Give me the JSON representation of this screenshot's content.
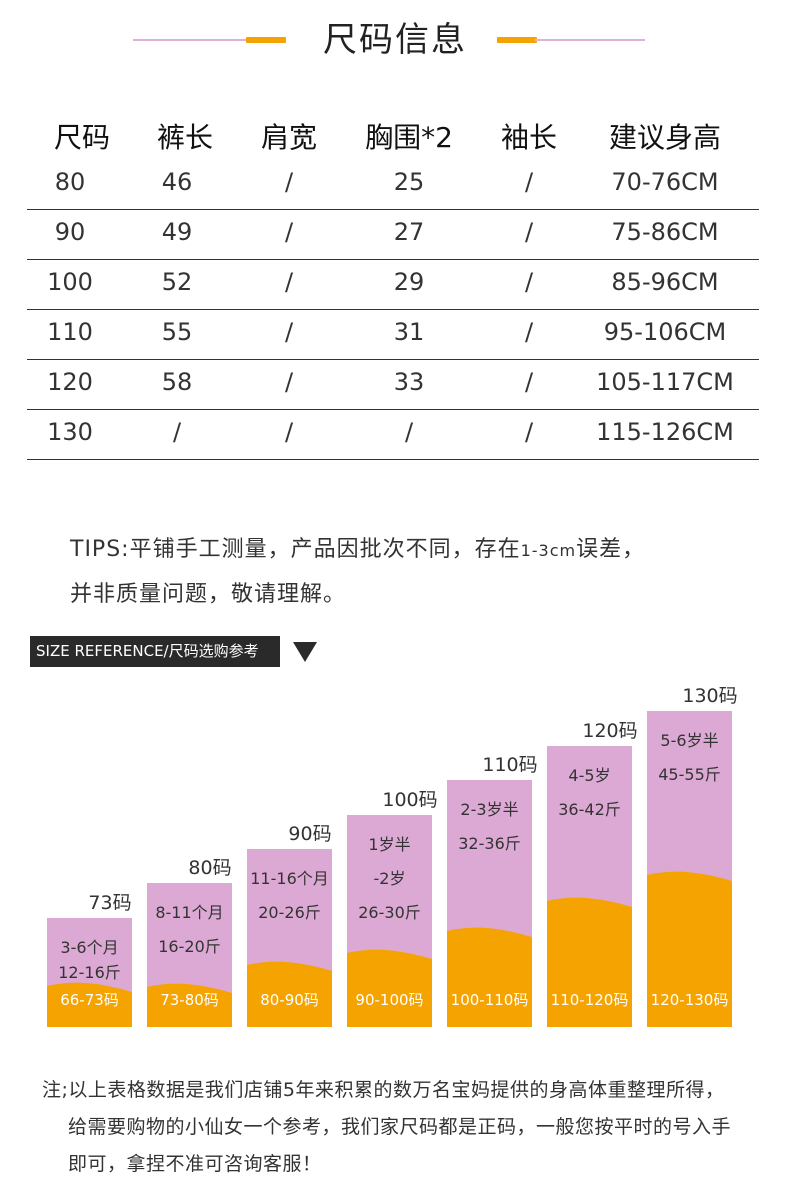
{
  "header": {
    "title": "尺码信息",
    "accent": "#f5a300",
    "line_color": "#e0b0d8"
  },
  "table": {
    "headers": [
      "尺码",
      "裤长",
      "肩宽",
      "胸围*2",
      "袖长",
      "建议身高"
    ],
    "rows": [
      [
        "80",
        "46",
        "/",
        "25",
        "/",
        "70-76CM"
      ],
      [
        "90",
        "49",
        "/",
        "27",
        "/",
        "75-86CM"
      ],
      [
        "100",
        "52",
        "/",
        "29",
        "/",
        "85-96CM"
      ],
      [
        "110",
        "55",
        "/",
        "31",
        "/",
        "95-106CM"
      ],
      [
        "120",
        "58",
        "/",
        "33",
        "/",
        "105-117CM"
      ],
      [
        "130",
        "/",
        "/",
        "/",
        "/",
        "115-126CM"
      ]
    ]
  },
  "tips": {
    "line1_a": "TIPS:平铺手工测量，产品因批次不同，存在",
    "line1_small": "1-3cm",
    "line1_b": "误差，",
    "line2": "并非质量问题，敬请理解。"
  },
  "size_reference": {
    "banner": "SIZE REFERENCE/尺码选购参考",
    "colors": {
      "top": "#dba9d4",
      "bottom": "#f5a300"
    },
    "bars": [
      {
        "label": "73码",
        "lines": [
          "3-6个月",
          "12-16斤"
        ],
        "code": "66-73码",
        "height_level": 0.38,
        "weight_level": 0.38
      },
      {
        "label": "80码",
        "lines": [
          "8-11个月",
          "16-20斤"
        ],
        "code": "73-80码",
        "height_level": 0.5,
        "weight_level": 0.28
      },
      {
        "label": "90码",
        "lines": [
          "11-16个月",
          "20-26斤"
        ],
        "code": "80-90码",
        "height_level": 0.62,
        "weight_level": 0.35
      },
      {
        "label": "100码",
        "lines": [
          "1岁半",
          "-2岁",
          "26-30斤"
        ],
        "code": "90-100码",
        "height_level": 0.74,
        "weight_level": 0.35
      },
      {
        "label": "110码",
        "lines": [
          "2-3岁半",
          "32-36斤"
        ],
        "code": "100-110码",
        "height_level": 0.86,
        "weight_level": 0.39
      },
      {
        "label": "120码",
        "lines": [
          "4-5岁",
          "36-42斤"
        ],
        "code": "110-120码",
        "height_level": 0.98,
        "weight_level": 0.45
      },
      {
        "label": "130码",
        "lines": [
          "5-6岁半",
          "45-55斤"
        ],
        "code": "120-130码",
        "height_level": 1.1,
        "weight_level": 0.48
      }
    ]
  },
  "note": {
    "line1": "注;以上表格数据是我们店铺5年来积累的数万名宝妈提供的身高体重整理所得，",
    "line2": "给需要购物的小仙女一个参考，我们家尺码都是正码，一般您按平时的号入手",
    "line3": "即可，拿捏不准可咨询客服！"
  }
}
